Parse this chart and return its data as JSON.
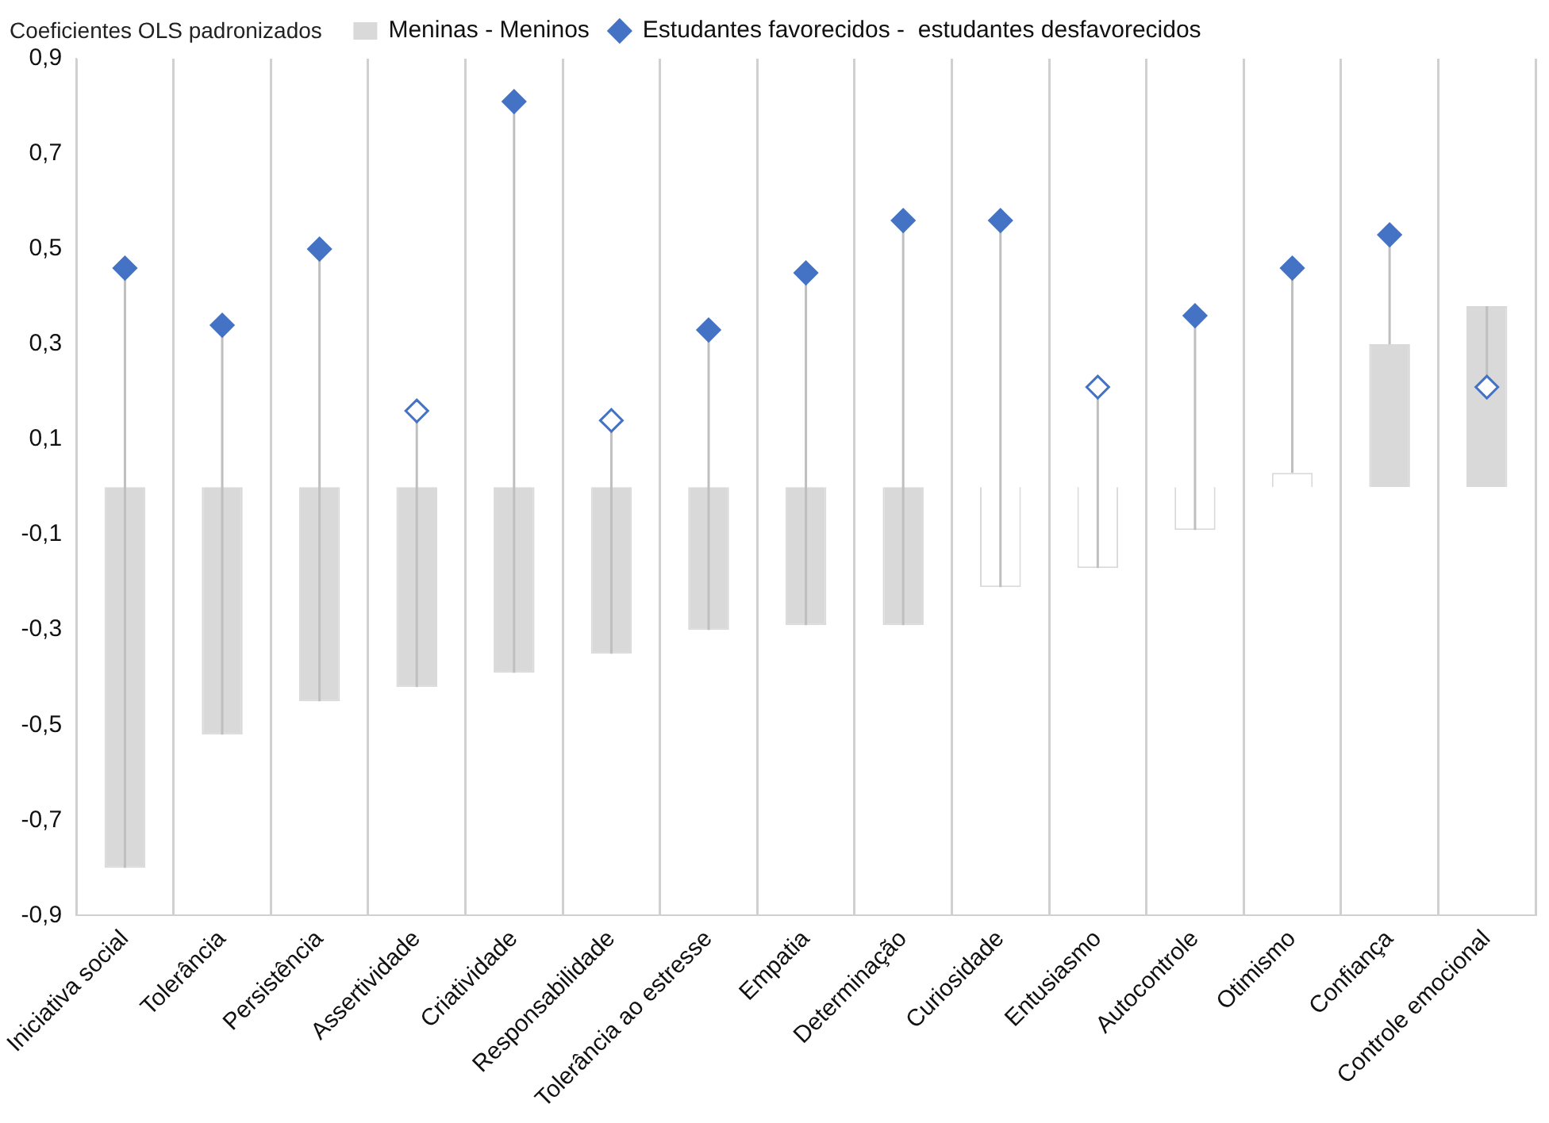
{
  "chart_data": {
    "type": "bar",
    "ylabel": "Coeficientes OLS padronizados",
    "categories": [
      "Iniciativa social",
      "Tolerância",
      "Persistência",
      "Assertividade",
      "Criatividade",
      "Responsabilidade",
      "Tolerância ao estresse",
      "Empatia",
      "Determinação",
      "Curiosidade",
      "Entusiasmo",
      "Autocontrole",
      "Otimismo",
      "Confiança",
      "Controle emocional"
    ],
    "series": [
      {
        "name": "Meninas - Meninos",
        "color": "#d9d9d9",
        "values": [
          -0.8,
          -0.52,
          -0.45,
          -0.42,
          -0.39,
          -0.35,
          -0.3,
          -0.29,
          -0.29,
          -0.21,
          -0.17,
          -0.09,
          0.03,
          0.3,
          0.38
        ],
        "colors": [
          "#d9d9d9",
          "#d9d9d9",
          "#d9d9d9",
          "#d9d9d9",
          "#d9d9d9",
          "#d9d9d9",
          "#d9d9d9",
          "#d9d9d9",
          "#d9d9d9",
          "#ffffff",
          "#ffffff",
          "#ffffff",
          "#ffffff",
          "#d9d9d9",
          "#d9d9d9"
        ]
      },
      {
        "name": "Estudantes favorecidos -  estudantes desfavorecidos",
        "type": "scatter",
        "color": "#4472c4",
        "values": [
          0.46,
          0.34,
          0.5,
          0.16,
          0.81,
          0.14,
          0.33,
          0.45,
          0.56,
          0.56,
          0.21,
          0.36,
          0.46,
          0.53,
          0.21
        ],
        "errors": [
          [
            -0.8,
            0.46
          ],
          [
            -0.52,
            0.34
          ],
          [
            -0.45,
            0.5
          ],
          [
            -0.42,
            0.16
          ],
          [
            -0.39,
            0.81
          ],
          [
            -0.35,
            0.14
          ],
          [
            -0.3,
            0.33
          ],
          [
            -0.29,
            0.45
          ],
          [
            -0.29,
            0.56
          ],
          [
            -0.21,
            0.56
          ],
          [
            -0.17,
            0.21
          ],
          [
            -0.09,
            0.36
          ],
          [
            0.03,
            0.46
          ],
          [
            0.3,
            0.53
          ],
          [
            0.38,
            0.21
          ]
        ],
        "colors": [
          "#4472c4",
          "#4472c4",
          "#4472c4",
          "#ffffff",
          "#4472c4",
          "#ffffff",
          "#4472c4",
          "#4472c4",
          "#4472c4",
          "#4472c4",
          "#ffffff",
          "#4472c4",
          "#4472c4",
          "#4472c4",
          "#ffffff"
        ]
      }
    ],
    "ylim": [
      -0.9,
      0.9
    ],
    "yticks": [
      {
        "value": 0.9,
        "label": "0,9"
      },
      {
        "value": 0.7,
        "label": "0,7"
      },
      {
        "value": 0.5,
        "label": "0,5"
      },
      {
        "value": 0.3,
        "label": "0,3"
      },
      {
        "value": 0.1,
        "label": "0,1"
      },
      {
        "value": -0.1,
        "label": "-0,1"
      },
      {
        "value": -0.3,
        "label": "-0,3"
      },
      {
        "value": -0.5,
        "label": "-0,5"
      },
      {
        "value": -0.7,
        "label": "-0,7"
      },
      {
        "value": -0.9,
        "label": "-0,9"
      }
    ],
    "grid": "x",
    "legend": "top",
    "marker": "diamond"
  }
}
